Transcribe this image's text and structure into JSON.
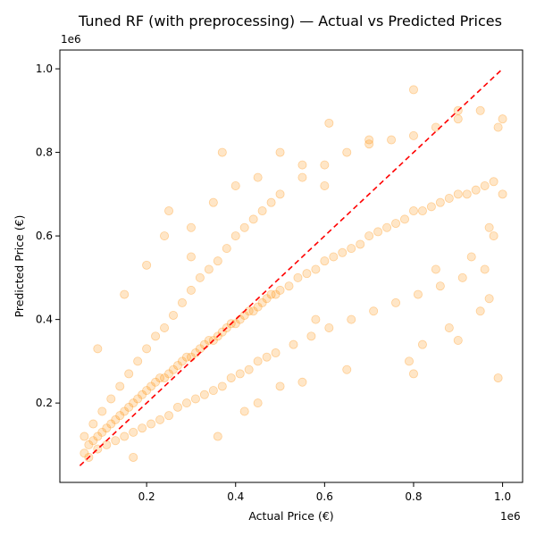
{
  "chart_data": {
    "type": "scatter",
    "title": "Tuned RF (with preprocessing) — Actual vs Predicted Prices",
    "xlabel": "Actual Price (€)",
    "ylabel": "Predicted Price (€)",
    "x_offset_label": "1e6",
    "y_offset_label": "1e6",
    "xlim": [
      0.005,
      1.045
    ],
    "ylim": [
      0.01,
      1.045
    ],
    "x_ticks": [
      0.2,
      0.4,
      0.6,
      0.8,
      1.0
    ],
    "y_ticks": [
      0.2,
      0.4,
      0.6,
      0.8,
      1.0
    ],
    "x_tick_labels": [
      "0.2",
      "0.4",
      "0.6",
      "0.8",
      "1.0"
    ],
    "y_tick_labels": [
      "0.2",
      "0.4",
      "0.6",
      "0.8",
      "1.0"
    ],
    "grid": false,
    "colors": {
      "points": "#ff8c00",
      "reference": "#ff0000"
    },
    "reference_line": {
      "style": "dashed",
      "x": [
        0.05,
        1.0
      ],
      "y": [
        0.05,
        1.0
      ]
    },
    "series": [
      {
        "x": [
          0.06,
          0.07,
          0.08,
          0.09,
          0.1,
          0.11,
          0.12,
          0.13,
          0.14,
          0.15,
          0.16,
          0.17,
          0.18,
          0.19,
          0.2,
          0.21,
          0.22,
          0.23,
          0.24,
          0.25,
          0.26,
          0.27,
          0.28,
          0.29,
          0.3,
          0.31,
          0.32,
          0.33,
          0.34,
          0.35,
          0.36,
          0.37,
          0.38,
          0.39,
          0.4,
          0.41,
          0.42,
          0.43,
          0.44,
          0.45,
          0.46,
          0.47,
          0.48,
          0.49,
          0.5,
          0.52,
          0.54,
          0.56,
          0.58,
          0.6,
          0.62,
          0.64,
          0.66,
          0.68,
          0.7,
          0.72,
          0.74,
          0.76,
          0.78,
          0.8,
          0.82,
          0.84,
          0.86,
          0.88,
          0.9,
          0.92,
          0.94,
          0.96,
          0.98,
          1.0,
          0.06,
          0.08,
          0.1,
          0.12,
          0.14,
          0.16,
          0.18,
          0.2,
          0.22,
          0.24,
          0.26,
          0.28,
          0.3,
          0.32,
          0.34,
          0.36,
          0.38,
          0.4,
          0.42,
          0.44,
          0.46,
          0.48,
          0.5,
          0.55,
          0.6,
          0.65,
          0.7,
          0.75,
          0.8,
          0.85,
          0.9,
          0.95,
          0.07,
          0.09,
          0.11,
          0.13,
          0.15,
          0.17,
          0.19,
          0.21,
          0.23,
          0.25,
          0.27,
          0.29,
          0.31,
          0.33,
          0.35,
          0.37,
          0.39,
          0.41,
          0.43,
          0.45,
          0.47,
          0.49,
          0.53,
          0.57,
          0.61,
          0.66,
          0.71,
          0.76,
          0.81,
          0.86,
          0.91,
          0.96,
          0.15,
          0.2,
          0.25,
          0.3,
          0.35,
          0.4,
          0.45,
          0.5,
          0.55,
          0.6,
          0.7,
          0.8,
          0.9,
          1.0,
          0.99,
          0.98,
          0.97,
          0.79,
          0.8,
          0.82,
          0.85,
          0.88,
          0.9,
          0.93,
          0.95,
          0.97,
          0.99,
          0.36,
          0.37,
          0.24,
          0.09,
          0.17,
          0.55,
          0.45,
          0.61,
          0.65,
          0.58,
          0.3,
          0.42,
          0.5
        ],
        "y": [
          0.08,
          0.1,
          0.11,
          0.12,
          0.13,
          0.14,
          0.15,
          0.16,
          0.17,
          0.18,
          0.19,
          0.2,
          0.21,
          0.22,
          0.23,
          0.24,
          0.25,
          0.26,
          0.26,
          0.27,
          0.28,
          0.29,
          0.3,
          0.31,
          0.31,
          0.32,
          0.33,
          0.34,
          0.35,
          0.35,
          0.36,
          0.37,
          0.38,
          0.39,
          0.39,
          0.4,
          0.41,
          0.42,
          0.42,
          0.43,
          0.44,
          0.45,
          0.46,
          0.46,
          0.47,
          0.48,
          0.5,
          0.51,
          0.52,
          0.54,
          0.55,
          0.56,
          0.57,
          0.58,
          0.6,
          0.61,
          0.62,
          0.63,
          0.64,
          0.66,
          0.66,
          0.67,
          0.68,
          0.69,
          0.7,
          0.7,
          0.71,
          0.72,
          0.73,
          0.7,
          0.12,
          0.15,
          0.18,
          0.21,
          0.24,
          0.27,
          0.3,
          0.33,
          0.36,
          0.38,
          0.41,
          0.44,
          0.47,
          0.5,
          0.52,
          0.54,
          0.57,
          0.6,
          0.62,
          0.64,
          0.66,
          0.68,
          0.7,
          0.74,
          0.77,
          0.8,
          0.82,
          0.83,
          0.84,
          0.86,
          0.88,
          0.9,
          0.07,
          0.09,
          0.1,
          0.11,
          0.12,
          0.13,
          0.14,
          0.15,
          0.16,
          0.17,
          0.19,
          0.2,
          0.21,
          0.22,
          0.23,
          0.24,
          0.26,
          0.27,
          0.28,
          0.3,
          0.31,
          0.32,
          0.34,
          0.36,
          0.38,
          0.4,
          0.42,
          0.44,
          0.46,
          0.48,
          0.5,
          0.52,
          0.46,
          0.53,
          0.66,
          0.55,
          0.68,
          0.72,
          0.74,
          0.8,
          0.77,
          0.72,
          0.83,
          0.95,
          0.9,
          0.88,
          0.86,
          0.6,
          0.62,
          0.3,
          0.27,
          0.34,
          0.52,
          0.38,
          0.35,
          0.55,
          0.42,
          0.45,
          0.26,
          0.12,
          0.8,
          0.6,
          0.33,
          0.07,
          0.25,
          0.2,
          0.87,
          0.28,
          0.4,
          0.62,
          0.18,
          0.24
        ]
      }
    ]
  }
}
